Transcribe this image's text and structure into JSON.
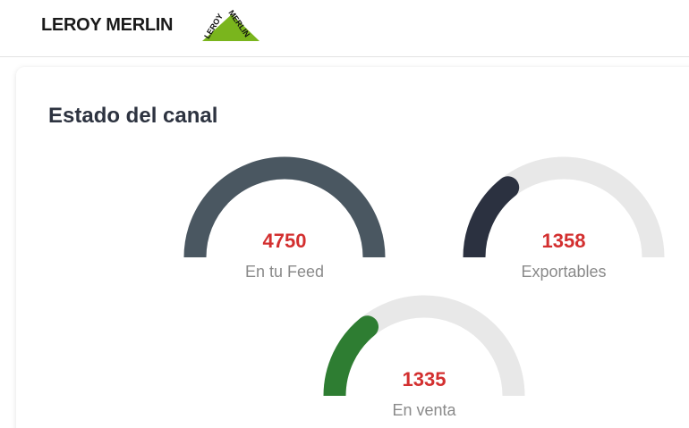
{
  "header": {
    "brand": "LEROY MERLIN",
    "logo": [
      "LEROY",
      "MERLIN"
    ]
  },
  "panel": {
    "title": "Estado del canal",
    "gauges": [
      {
        "value": 4750,
        "label": "En tu Feed",
        "color": "#4a5761"
      },
      {
        "value": 1358,
        "label": "Exportables",
        "color": "#2b3140"
      },
      {
        "value": 1335,
        "label": "En venta",
        "color": "#2e7d32"
      }
    ]
  }
}
